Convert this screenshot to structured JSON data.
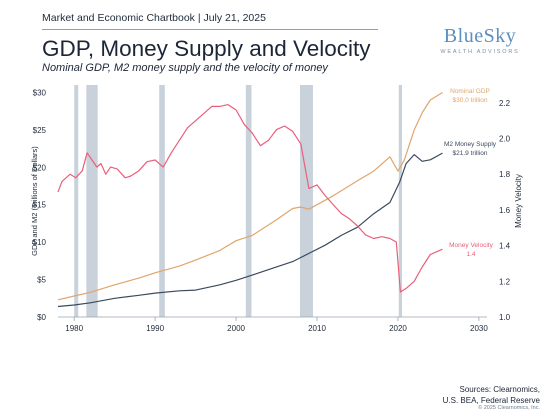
{
  "header": {
    "kicker": "Market and Economic Chartbook | July 21, 2025",
    "title": "GDP, Money Supply and Velocity",
    "subtitle": "Nominal GDP, M2 money supply and the velocity of money"
  },
  "logo": {
    "main": "BlueSky",
    "sub": "WEALTH ADVISORS"
  },
  "footer": {
    "sources_line1": "Sources: Clearnomics,",
    "sources_line2": "U.S. BEA, Federal Reserve",
    "copyright": "© 2025 Clearnomics, Inc."
  },
  "colors": {
    "gdp": "#e0a56c",
    "m2": "#3a4a5e",
    "velocity": "#e8607a",
    "recession": "#c9d2db"
  },
  "chart_data": {
    "type": "line",
    "xlim": [
      1978,
      2031
    ],
    "x_ticks": [
      1980,
      1990,
      2000,
      2010,
      2020,
      2030
    ],
    "y_left": {
      "label": "GDP and M2 (Trillions of Dollars)",
      "lim": [
        0,
        31
      ],
      "ticks": [
        0,
        5,
        10,
        15,
        20,
        25,
        30
      ],
      "tick_labels": [
        "$0",
        "$5",
        "$10",
        "$15",
        "$20",
        "$25",
        "$30"
      ]
    },
    "y_right": {
      "label": "Money Velocity",
      "lim": [
        1.0,
        2.3
      ],
      "ticks": [
        1.0,
        1.2,
        1.4,
        1.6,
        1.8,
        2.0,
        2.2
      ],
      "tick_labels": [
        "1.0",
        "1.2",
        "1.4",
        "1.6",
        "1.8",
        "2.0",
        "2.2"
      ]
    },
    "recessions": [
      [
        1980.0,
        1980.5
      ],
      [
        1981.5,
        1982.9
      ],
      [
        1990.5,
        1991.2
      ],
      [
        2001.2,
        2001.9
      ],
      [
        2007.9,
        2009.5
      ],
      [
        2020.1,
        2020.5
      ]
    ],
    "series": [
      {
        "name": "Nominal GDP",
        "axis": "left",
        "color_key": "gdp",
        "end_label": "Nominal GDP",
        "end_value_label": "$30.0 trillion",
        "points": [
          [
            1978,
            2.3
          ],
          [
            1980,
            2.8
          ],
          [
            1982,
            3.3
          ],
          [
            1985,
            4.3
          ],
          [
            1988,
            5.2
          ],
          [
            1990,
            5.9
          ],
          [
            1993,
            6.8
          ],
          [
            1995,
            7.6
          ],
          [
            1998,
            8.9
          ],
          [
            2000,
            10.2
          ],
          [
            2002,
            10.9
          ],
          [
            2005,
            13.0
          ],
          [
            2007,
            14.5
          ],
          [
            2008,
            14.7
          ],
          [
            2009,
            14.4
          ],
          [
            2010,
            15.0
          ],
          [
            2012,
            16.2
          ],
          [
            2015,
            18.2
          ],
          [
            2017,
            19.5
          ],
          [
            2019,
            21.4
          ],
          [
            2020,
            19.5
          ],
          [
            2020.8,
            21.0
          ],
          [
            2022,
            25.0
          ],
          [
            2023,
            27.3
          ],
          [
            2024,
            29.0
          ],
          [
            2025.5,
            30.0
          ]
        ]
      },
      {
        "name": "M2 Money Supply",
        "axis": "left",
        "color_key": "m2",
        "end_label": "M2 Money Supply",
        "end_value_label": "$21.9 trillion",
        "points": [
          [
            1978,
            1.4
          ],
          [
            1980,
            1.6
          ],
          [
            1982,
            1.9
          ],
          [
            1985,
            2.5
          ],
          [
            1988,
            2.9
          ],
          [
            1990,
            3.2
          ],
          [
            1993,
            3.5
          ],
          [
            1995,
            3.6
          ],
          [
            1998,
            4.3
          ],
          [
            2000,
            4.9
          ],
          [
            2002,
            5.6
          ],
          [
            2005,
            6.7
          ],
          [
            2007,
            7.4
          ],
          [
            2009,
            8.5
          ],
          [
            2011,
            9.6
          ],
          [
            2013,
            10.9
          ],
          [
            2015,
            12.0
          ],
          [
            2017,
            13.8
          ],
          [
            2019,
            15.3
          ],
          [
            2020.2,
            18.0
          ],
          [
            2021,
            20.5
          ],
          [
            2022,
            21.7
          ],
          [
            2023,
            20.8
          ],
          [
            2024,
            21.0
          ],
          [
            2025.5,
            21.9
          ]
        ]
      },
      {
        "name": "Money Velocity",
        "axis": "right",
        "color_key": "velocity",
        "end_label": "Money Velocity",
        "end_value_label": "1.4",
        "points": [
          [
            1978,
            1.7
          ],
          [
            1978.5,
            1.76
          ],
          [
            1979.5,
            1.8
          ],
          [
            1980.2,
            1.78
          ],
          [
            1981,
            1.82
          ],
          [
            1981.6,
            1.92
          ],
          [
            1982.2,
            1.88
          ],
          [
            1982.8,
            1.84
          ],
          [
            1983.3,
            1.86
          ],
          [
            1983.9,
            1.8
          ],
          [
            1984.5,
            1.84
          ],
          [
            1985.3,
            1.83
          ],
          [
            1986.3,
            1.78
          ],
          [
            1987,
            1.79
          ],
          [
            1988,
            1.82
          ],
          [
            1989,
            1.87
          ],
          [
            1990,
            1.88
          ],
          [
            1991,
            1.84
          ],
          [
            1992,
            1.92
          ],
          [
            1993,
            1.99
          ],
          [
            1994,
            2.06
          ],
          [
            1995,
            2.1
          ],
          [
            1996,
            2.14
          ],
          [
            1997,
            2.18
          ],
          [
            1998,
            2.18
          ],
          [
            1999,
            2.19
          ],
          [
            2000,
            2.16
          ],
          [
            2001,
            2.08
          ],
          [
            2002,
            2.03
          ],
          [
            2003,
            1.96
          ],
          [
            2004,
            1.99
          ],
          [
            2005,
            2.05
          ],
          [
            2006,
            2.07
          ],
          [
            2007,
            2.04
          ],
          [
            2008,
            1.97
          ],
          [
            2009,
            1.72
          ],
          [
            2010,
            1.74
          ],
          [
            2011,
            1.68
          ],
          [
            2012,
            1.63
          ],
          [
            2013,
            1.58
          ],
          [
            2014,
            1.55
          ],
          [
            2015,
            1.51
          ],
          [
            2016,
            1.46
          ],
          [
            2017,
            1.44
          ],
          [
            2018,
            1.45
          ],
          [
            2019,
            1.44
          ],
          [
            2019.8,
            1.42
          ],
          [
            2020.3,
            1.14
          ],
          [
            2021,
            1.16
          ],
          [
            2022,
            1.2
          ],
          [
            2023,
            1.28
          ],
          [
            2024,
            1.35
          ],
          [
            2025.5,
            1.38
          ]
        ]
      }
    ]
  }
}
